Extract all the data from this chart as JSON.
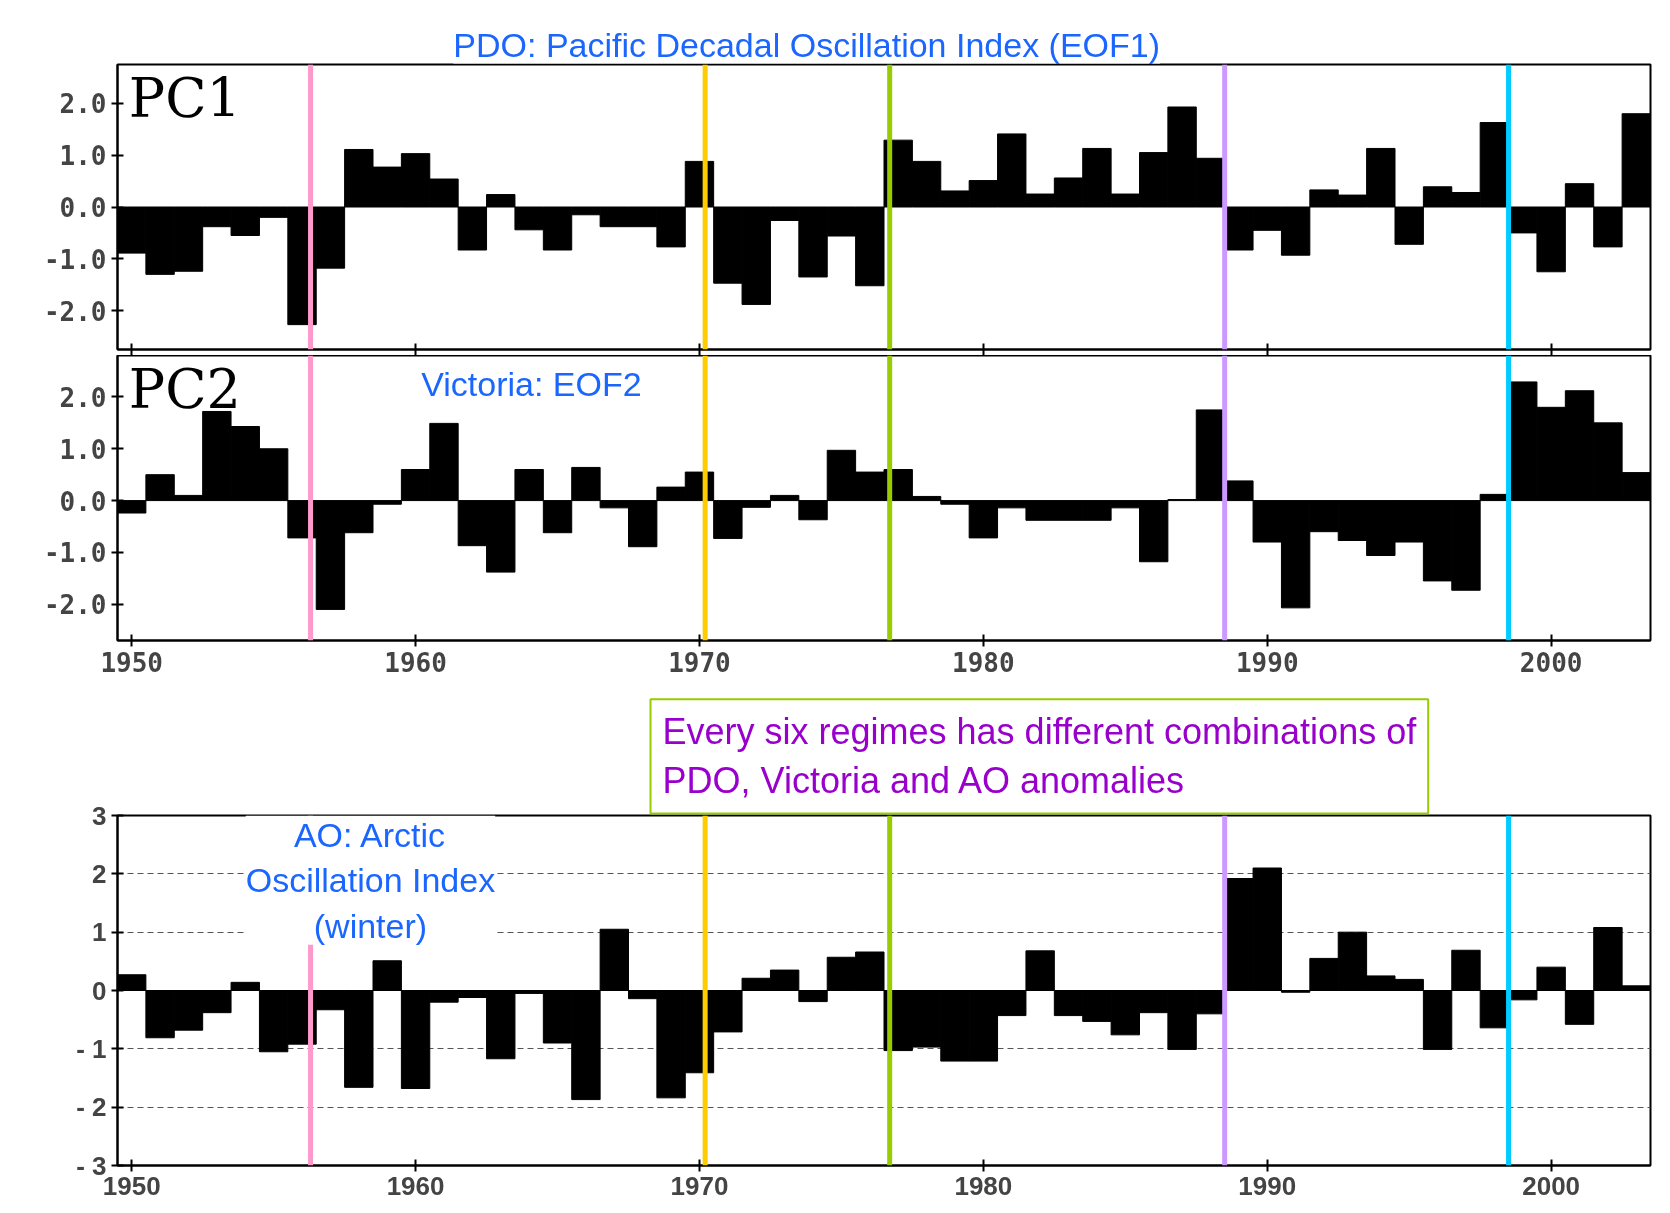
{
  "chart_data": [
    {
      "type": "bar",
      "title": "PDO: Pacific Decadal Oscillation Index (EOF1)",
      "annotations": [
        "PC1"
      ],
      "color": "#000000",
      "x": [
        1950,
        1951,
        1952,
        1953,
        1954,
        1955,
        1956,
        1957,
        1958,
        1959,
        1960,
        1961,
        1962,
        1963,
        1964,
        1965,
        1966,
        1967,
        1968,
        1969,
        1970,
        1971,
        1972,
        1973,
        1974,
        1975,
        1976,
        1977,
        1978,
        1979,
        1980,
        1981,
        1982,
        1983,
        1984,
        1985,
        1986,
        1987,
        1988,
        1989,
        1990,
        1991,
        1992,
        1993,
        1994,
        1995,
        1996,
        1997,
        1998,
        1999,
        2000,
        2001,
        2002,
        2003
      ],
      "values": [
        -0.89,
        -1.3,
        -1.24,
        -0.38,
        -0.55,
        -0.2,
        -2.27,
        -1.18,
        1.11,
        0.77,
        1.03,
        0.54,
        -0.83,
        0.24,
        -0.44,
        -0.83,
        -0.15,
        -0.38,
        -0.38,
        -0.77,
        0.88,
        -1.47,
        -1.88,
        -0.26,
        -1.35,
        -0.56,
        -1.52,
        1.29,
        0.88,
        0.31,
        0.51,
        1.41,
        0.25,
        0.56,
        1.13,
        0.25,
        1.05,
        1.93,
        0.94,
        -0.83,
        -0.45,
        -0.93,
        0.33,
        0.23,
        1.13,
        -0.72,
        0.39,
        0.28,
        1.63,
        -0.5,
        -1.25,
        0.45,
        -0.77,
        1.8
      ],
      "xlim": [
        1949.5,
        2003.5
      ],
      "xticks": [
        1950,
        1960,
        1970,
        1980,
        1990,
        2000
      ],
      "ylim": [
        -2.75,
        2.75
      ],
      "yticks": [
        {
          "value": 2,
          "label": "2.0"
        },
        {
          "value": 1,
          "label": "1.0"
        },
        {
          "value": 0,
          "label": "0.0"
        },
        {
          "value": -1,
          "label": "-1.0"
        },
        {
          "value": -2,
          "label": "-2.0"
        }
      ],
      "tick_labels": "y",
      "ref_lines": [
        {
          "axis": "x",
          "value": 1956.3,
          "color": "#ff99cc"
        },
        {
          "axis": "x",
          "value": 1970.2,
          "color": "#ffcc00"
        },
        {
          "axis": "x",
          "value": 1976.7,
          "color": "#99cc00"
        },
        {
          "axis": "x",
          "value": 1988.5,
          "color": "#cc99ff"
        },
        {
          "axis": "x",
          "value": 1998.5,
          "color": "#00ccff"
        }
      ]
    },
    {
      "type": "bar",
      "title": "Victoria: EOF2",
      "annotations": [
        "PC2"
      ],
      "color": "#000000",
      "x": [
        1950,
        1951,
        1952,
        1953,
        1954,
        1955,
        1956,
        1957,
        1958,
        1959,
        1960,
        1961,
        1962,
        1963,
        1964,
        1965,
        1966,
        1967,
        1968,
        1969,
        1970,
        1971,
        1972,
        1973,
        1974,
        1975,
        1976,
        1977,
        1978,
        1979,
        1980,
        1981,
        1982,
        1983,
        1984,
        1985,
        1986,
        1987,
        1988,
        1989,
        1990,
        1991,
        1992,
        1993,
        1994,
        1995,
        1996,
        1997,
        1998,
        1999,
        2000,
        2001,
        2002,
        2003
      ],
      "values": [
        -0.24,
        0.5,
        0.1,
        1.72,
        1.43,
        1.0,
        -0.72,
        -2.1,
        -0.62,
        -0.07,
        0.6,
        1.49,
        -0.87,
        -1.38,
        0.6,
        -0.62,
        0.64,
        -0.14,
        -0.89,
        0.26,
        0.55,
        -0.73,
        -0.13,
        0.1,
        -0.37,
        0.97,
        0.55,
        0.6,
        0.08,
        -0.07,
        -0.72,
        -0.14,
        -0.38,
        -0.38,
        -0.38,
        -0.14,
        -1.18,
        0.02,
        1.75,
        0.38,
        -0.8,
        -2.07,
        -0.6,
        -0.77,
        -1.06,
        -0.8,
        -1.55,
        -1.73,
        0.12,
        2.29,
        1.8,
        2.12,
        1.5,
        0.54
      ],
      "xlim": [
        1949.5,
        2003.5
      ],
      "xticks": [
        1950,
        1960,
        1970,
        1980,
        1990,
        2000
      ],
      "ylim": [
        -2.7,
        2.8
      ],
      "yticks": [
        {
          "value": 2,
          "label": "2.0"
        },
        {
          "value": 1,
          "label": "1.0"
        },
        {
          "value": 0,
          "label": "0.0"
        },
        {
          "value": -1,
          "label": "-1.0"
        },
        {
          "value": -2,
          "label": "-2.0"
        }
      ],
      "ref_lines": [
        {
          "axis": "x",
          "value": 1956.3,
          "color": "#ff99cc"
        },
        {
          "axis": "x",
          "value": 1970.2,
          "color": "#ffcc00"
        },
        {
          "axis": "x",
          "value": 1976.7,
          "color": "#99cc00"
        },
        {
          "axis": "x",
          "value": 1988.5,
          "color": "#cc99ff"
        },
        {
          "axis": "x",
          "value": 1998.5,
          "color": "#00ccff"
        }
      ]
    },
    {
      "type": "bar",
      "title": "AO: Arctic Oscillation Index (winter)",
      "annotations": [
        "Every six regimes has different combinations of PDO, Victoria and AO anomalies"
      ],
      "color": "#000000",
      "x": [
        1950,
        1951,
        1952,
        1953,
        1954,
        1955,
        1956,
        1957,
        1958,
        1959,
        1960,
        1961,
        1962,
        1963,
        1964,
        1965,
        1966,
        1967,
        1968,
        1969,
        1970,
        1971,
        1972,
        1973,
        1974,
        1975,
        1976,
        1977,
        1978,
        1979,
        1980,
        1981,
        1982,
        1983,
        1984,
        1985,
        1986,
        1987,
        1988,
        1989,
        1990,
        1991,
        1992,
        1993,
        1994,
        1995,
        1996,
        1997,
        1998,
        1999,
        2000,
        2001,
        2002,
        2003
      ],
      "values": [
        0.27,
        -0.81,
        -0.68,
        -0.38,
        0.14,
        -1.05,
        -0.92,
        -0.33,
        -1.66,
        0.51,
        -1.68,
        -0.2,
        -0.12,
        -1.17,
        -0.05,
        -0.9,
        -1.87,
        1.05,
        -0.14,
        -1.84,
        -1.41,
        -0.71,
        0.21,
        0.35,
        -0.19,
        0.57,
        0.66,
        -1.03,
        -0.97,
        -1.21,
        -1.21,
        -0.43,
        0.68,
        -0.43,
        -0.53,
        -0.76,
        -0.38,
        -1.01,
        -0.4,
        1.92,
        2.1,
        -0.03,
        0.55,
        1.0,
        0.25,
        0.19,
        -1.01,
        0.69,
        -0.64,
        -0.16,
        0.4,
        -0.58,
        1.08,
        0.08
      ],
      "xlim": [
        1949.5,
        2003.5
      ],
      "xticks": [
        1950,
        1960,
        1970,
        1980,
        1990,
        2000
      ],
      "ylim": [
        -3,
        3
      ],
      "yticks": [
        3,
        2,
        1,
        0,
        {
          "value": -1,
          "label": "- 1"
        },
        {
          "value": -2,
          "label": "- 2"
        },
        {
          "value": -3,
          "label": "- 3"
        }
      ],
      "grid": "y",
      "ref_lines": [
        {
          "axis": "x",
          "value": 1956.3,
          "color": "#ff99cc"
        },
        {
          "axis": "x",
          "value": 1970.2,
          "color": "#ffcc00"
        },
        {
          "axis": "x",
          "value": 1976.7,
          "color": "#99cc00"
        },
        {
          "axis": "x",
          "value": 1988.5,
          "color": "#cc99ff"
        },
        {
          "axis": "x",
          "value": 1998.5,
          "color": "#00ccff"
        }
      ]
    }
  ]
}
